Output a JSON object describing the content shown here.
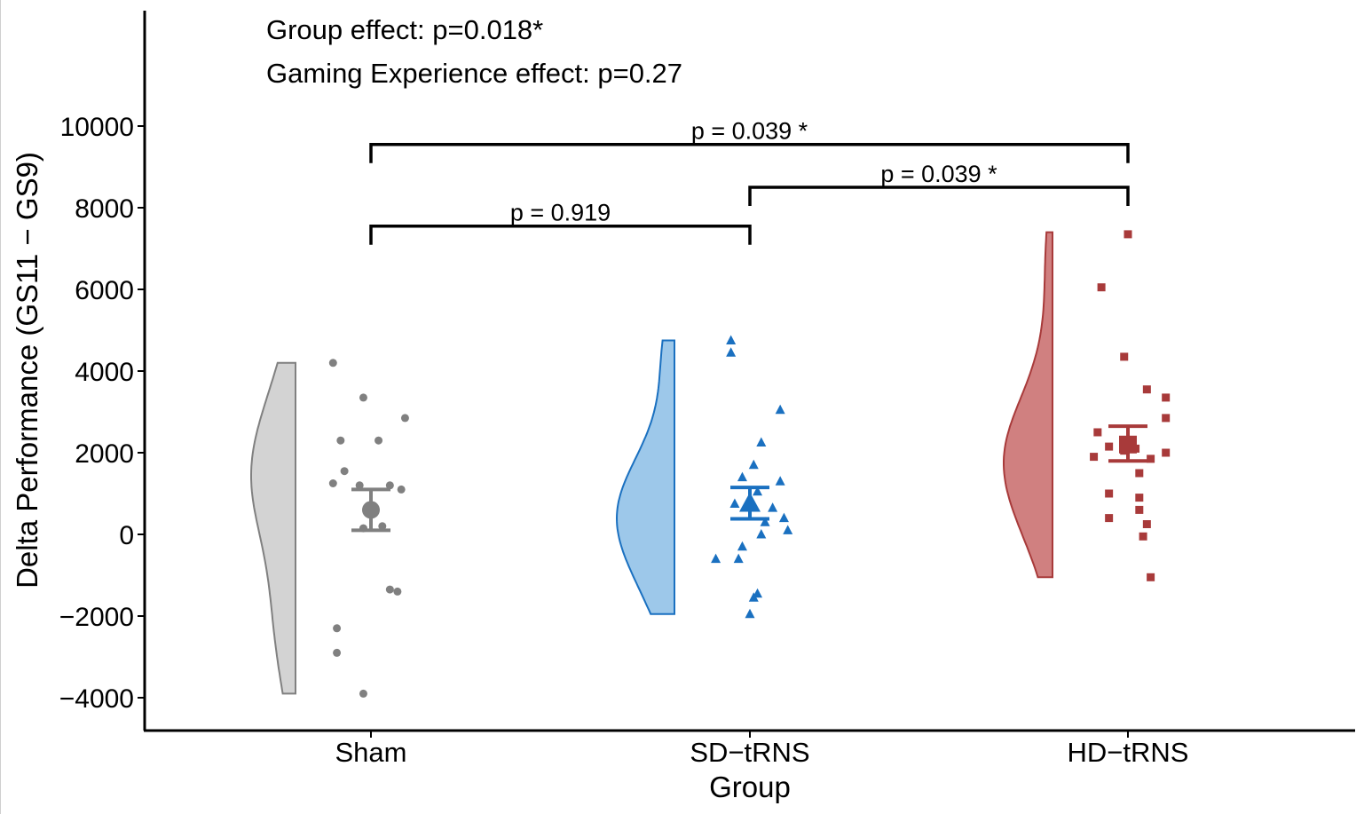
{
  "chart_data": {
    "type": "scatter",
    "subtype": "raincloud (half-violin + jittered points + mean ± error bar)",
    "xlabel": "Group",
    "ylabel": "Delta Performance (GS11 − GS9)",
    "categories": [
      "Sham",
      "SD−tRNS",
      "HD−tRNS"
    ],
    "yticks": [
      -4000,
      -2000,
      0,
      2000,
      4000,
      6000,
      8000,
      10000
    ],
    "ytick_labels": [
      "−4000",
      "−2000",
      "0",
      "2000",
      "4000",
      "6000",
      "8000",
      "10000"
    ],
    "ylim": [
      -4800,
      12900
    ],
    "grid": false,
    "annotations": [
      "Group effect: p=0.018*",
      "Gaming Experience effect: p=0.27"
    ],
    "comparisons": [
      {
        "from": "Sham",
        "to": "SD−tRNS",
        "label": "p = 0.919",
        "y": 7550
      },
      {
        "from": "SD−tRNS",
        "to": "HD−tRNS",
        "label": "p = 0.039 *",
        "y": 8500
      },
      {
        "from": "Sham",
        "to": "HD−tRNS",
        "label": "p = 0.039 *",
        "y": 9550
      }
    ],
    "series": [
      {
        "name": "Sham",
        "color": "#808080",
        "fill": "#d3d3d3",
        "marker": "circle",
        "mean": 600,
        "error_low": 100,
        "error_high": 1100,
        "violin_range": [
          -3900,
          4200
        ],
        "points": [
          {
            "x": -0.1,
            "y": 4200
          },
          {
            "x": -0.02,
            "y": 3350
          },
          {
            "x": 0.09,
            "y": 2850
          },
          {
            "x": -0.08,
            "y": 2300
          },
          {
            "x": 0.02,
            "y": 2300
          },
          {
            "x": -0.07,
            "y": 1550
          },
          {
            "x": -0.1,
            "y": 1250
          },
          {
            "x": -0.03,
            "y": 1200
          },
          {
            "x": 0.05,
            "y": 1200
          },
          {
            "x": 0.08,
            "y": 1100
          },
          {
            "x": 0.03,
            "y": 200
          },
          {
            "x": -0.02,
            "y": 150
          },
          {
            "x": 0.05,
            "y": -1350
          },
          {
            "x": 0.07,
            "y": -1400
          },
          {
            "x": -0.09,
            "y": -2300
          },
          {
            "x": -0.09,
            "y": -2900
          },
          {
            "x": -0.02,
            "y": -3900
          }
        ]
      },
      {
        "name": "SD−tRNS",
        "color": "#1a70c0",
        "fill": "#9dc8ea",
        "marker": "triangle",
        "mean": 750,
        "error_low": 380,
        "error_high": 1150,
        "violin_range": [
          -1950,
          4750
        ],
        "points": [
          {
            "x": -0.05,
            "y": 4750
          },
          {
            "x": -0.05,
            "y": 4450
          },
          {
            "x": 0.08,
            "y": 3050
          },
          {
            "x": 0.03,
            "y": 2250
          },
          {
            "x": 0.01,
            "y": 1700
          },
          {
            "x": -0.02,
            "y": 1400
          },
          {
            "x": 0.08,
            "y": 1300
          },
          {
            "x": 0.02,
            "y": 1050
          },
          {
            "x": -0.04,
            "y": 750
          },
          {
            "x": 0.06,
            "y": 650
          },
          {
            "x": 0.09,
            "y": 400
          },
          {
            "x": 0.04,
            "y": 300
          },
          {
            "x": 0.1,
            "y": 100
          },
          {
            "x": 0.03,
            "y": 0
          },
          {
            "x": -0.02,
            "y": -300
          },
          {
            "x": -0.09,
            "y": -600
          },
          {
            "x": -0.03,
            "y": -600
          },
          {
            "x": 0.02,
            "y": -1450
          },
          {
            "x": 0.01,
            "y": -1550
          },
          {
            "x": 0.0,
            "y": -1950
          }
        ]
      },
      {
        "name": "HD−tRNS",
        "color": "#a83a3a",
        "fill": "#d08080",
        "marker": "square",
        "mean": 2200,
        "error_low": 1800,
        "error_high": 2650,
        "violin_range": [
          -1050,
          7400
        ],
        "points": [
          {
            "x": 0.0,
            "y": 7350
          },
          {
            "x": -0.07,
            "y": 6050
          },
          {
            "x": -0.01,
            "y": 4350
          },
          {
            "x": 0.05,
            "y": 3550
          },
          {
            "x": 0.1,
            "y": 3350
          },
          {
            "x": 0.1,
            "y": 2850
          },
          {
            "x": -0.08,
            "y": 2500
          },
          {
            "x": -0.05,
            "y": 2150
          },
          {
            "x": -0.01,
            "y": 2050
          },
          {
            "x": 0.02,
            "y": 2100
          },
          {
            "x": 0.1,
            "y": 2000
          },
          {
            "x": -0.09,
            "y": 1900
          },
          {
            "x": 0.06,
            "y": 1850
          },
          {
            "x": 0.03,
            "y": 1500
          },
          {
            "x": -0.05,
            "y": 1000
          },
          {
            "x": 0.03,
            "y": 900
          },
          {
            "x": 0.03,
            "y": 600
          },
          {
            "x": -0.05,
            "y": 400
          },
          {
            "x": 0.05,
            "y": 250
          },
          {
            "x": 0.04,
            "y": -50
          },
          {
            "x": 0.06,
            "y": -1050
          }
        ]
      }
    ]
  }
}
